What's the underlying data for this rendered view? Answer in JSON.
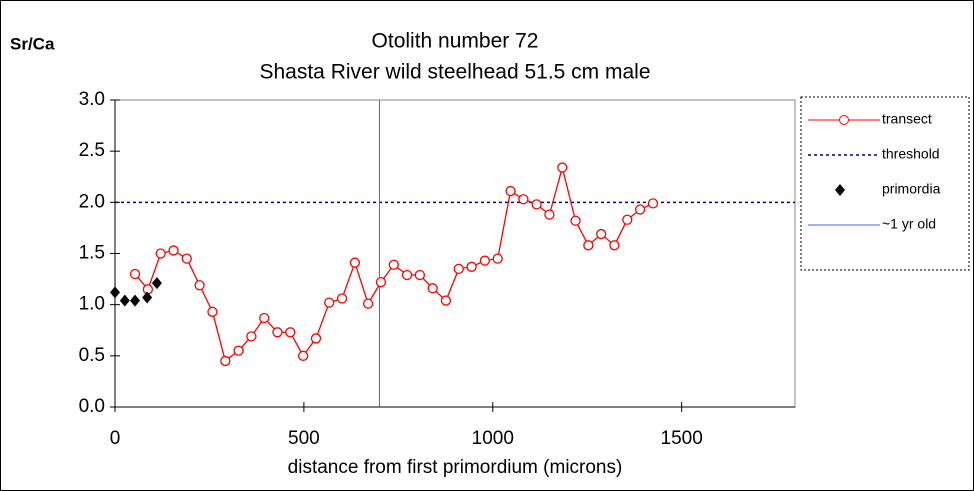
{
  "chart_data": {
    "type": "line",
    "title": "Otolith number 72",
    "subtitle": "Shasta River wild steelhead 51.5 cm male",
    "y_label": "Sr/Ca",
    "x_label": "distance from first primordium (microns)",
    "xlim": [
      0,
      1800
    ],
    "xticks": [
      0,
      500,
      1000,
      1500
    ],
    "ylim": [
      0,
      3
    ],
    "yticks": [
      {
        "value": 0,
        "label": "0.0"
      },
      {
        "value": 0.5,
        "label": "0.5"
      },
      {
        "value": 1,
        "label": "1.0"
      },
      {
        "value": 1.5,
        "label": "1.5"
      },
      {
        "value": 2,
        "label": "2.0"
      },
      {
        "value": 2.5,
        "label": "2.5"
      },
      {
        "value": 3,
        "label": "3.0"
      }
    ],
    "series": [
      {
        "name": "transect",
        "color": "#ff0000",
        "x": [
          53,
          87,
          121,
          155,
          190,
          224,
          258,
          292,
          327,
          361,
          395,
          430,
          464,
          498,
          532,
          567,
          601,
          635,
          670,
          704,
          738,
          773,
          807,
          841,
          876,
          910,
          944,
          979,
          1013,
          1047,
          1081,
          1116,
          1150,
          1184,
          1219,
          1253,
          1287,
          1322,
          1356,
          1390,
          1424
        ],
        "values": [
          1.3,
          1.15,
          1.5,
          1.53,
          1.45,
          1.19,
          0.93,
          0.45,
          0.55,
          0.69,
          0.87,
          0.73,
          0.73,
          0.5,
          0.67,
          1.02,
          1.06,
          1.41,
          1.01,
          1.22,
          1.39,
          1.29,
          1.29,
          1.16,
          1.04,
          1.35,
          1.37,
          1.43,
          1.45,
          2.11,
          2.03,
          1.98,
          1.88,
          2.34,
          1.82,
          1.58,
          1.69,
          1.58,
          1.83,
          1.93,
          1.99
        ]
      },
      {
        "name": "threshold",
        "color": "#000080",
        "value": 2
      },
      {
        "name": "primordia",
        "color": "#000000",
        "x": [
          0,
          26,
          53,
          85,
          111
        ],
        "values": [
          1.12,
          1.04,
          1.04,
          1.07,
          1.21
        ]
      },
      {
        "name": "~1 yr old",
        "color": "#3366ff",
        "x_value": 700
      }
    ]
  }
}
